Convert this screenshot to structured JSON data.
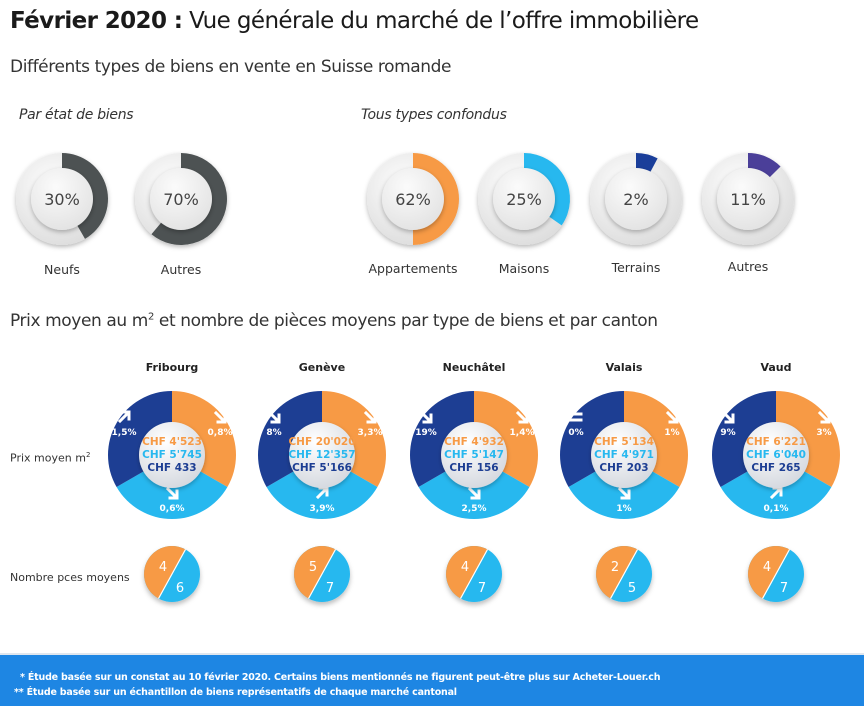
{
  "header": {
    "title_bold": "Février 2020 :",
    "title_rest": " Vue générale du marché de l’offre immobilière",
    "subtitle": "Différents types de biens en vente en Suisse romande"
  },
  "colors": {
    "orange": "#f79a45",
    "light_blue": "#27b8ef",
    "dark_blue": "#1d3e93",
    "dark_grey": "#4d5253",
    "purple": "#4b3f99",
    "terrain_blue": "#1a3e9a",
    "footer_blue": "#1e86e3"
  },
  "section1": {
    "by_state_label": "Par état de biens",
    "all_types_label": "Tous types confondus"
  },
  "section2": {
    "title_before": "Prix moyen au m",
    "title_sup": "2",
    "title_after": " et nombre de pièces moyens par type de biens et par canton",
    "row_price_label": "Prix moyen m",
    "row_price_sup": "2",
    "row_rooms_label": "Nombre pces moyens"
  },
  "chart_data": [
    {
      "type": "pie",
      "title": "Par état de biens",
      "series": [
        {
          "name": "Neufs",
          "value": 30,
          "label": "30%",
          "color": "#4d5253"
        },
        {
          "name": "Autres",
          "value": 70,
          "label": "70%",
          "color": "#4d5253"
        }
      ]
    },
    {
      "type": "pie",
      "title": "Tous types confondus",
      "series": [
        {
          "name": "Appartements",
          "value": 62,
          "label": "62%",
          "color": "#f79a45"
        },
        {
          "name": "Maisons",
          "value": 25,
          "label": "25%",
          "color": "#27b8ef"
        },
        {
          "name": "Terrains",
          "value": 2,
          "label": "2%",
          "color": "#1a3e9a"
        },
        {
          "name": "Autres",
          "value": 11,
          "label": "11%",
          "color": "#4b3f99"
        }
      ]
    },
    {
      "type": "table",
      "title": "Prix moyen au m2 et nombre de pièces moyens par type de biens et par canton",
      "categories": [
        "Fribourg",
        "Genève",
        "Neuchâtel",
        "Valais",
        "Vaud"
      ],
      "cantons": [
        {
          "name": "Fribourg",
          "prices": [
            {
              "type": "orange",
              "value": "CHF 4'523",
              "change": "0,8%",
              "trend": "down"
            },
            {
              "type": "light_blue",
              "value": "CHF 5'745",
              "change": "0,6%",
              "trend": "down"
            },
            {
              "type": "dark_blue",
              "value": "CHF 433",
              "change": "1,5%",
              "trend": "up"
            }
          ],
          "rooms": {
            "orange": "4",
            "light_blue": "6"
          }
        },
        {
          "name": "Genève",
          "prices": [
            {
              "type": "orange",
              "value": "CHF 20'020",
              "change": "3,3%",
              "trend": "down"
            },
            {
              "type": "light_blue",
              "value": "CHF 12'357",
              "change": "3,9%",
              "trend": "up"
            },
            {
              "type": "dark_blue",
              "value": "CHF 5'166",
              "change": "8%",
              "trend": "down"
            }
          ],
          "rooms": {
            "orange": "5",
            "light_blue": "7"
          }
        },
        {
          "name": "Neuchâtel",
          "prices": [
            {
              "type": "orange",
              "value": "CHF 4'932",
              "change": "1,4%",
              "trend": "down"
            },
            {
              "type": "light_blue",
              "value": "CHF 5'147",
              "change": "2,5%",
              "trend": "down"
            },
            {
              "type": "dark_blue",
              "value": "CHF 156",
              "change": "19%",
              "trend": "down"
            }
          ],
          "rooms": {
            "orange": "4",
            "light_blue": "7"
          }
        },
        {
          "name": "Valais",
          "prices": [
            {
              "type": "orange",
              "value": "CHF 5'134",
              "change": "1%",
              "trend": "down"
            },
            {
              "type": "light_blue",
              "value": "CHF 4'971",
              "change": "1%",
              "trend": "down"
            },
            {
              "type": "dark_blue",
              "value": "CHF 203",
              "change": "0%",
              "trend": "equal"
            }
          ],
          "rooms": {
            "orange": "2",
            "light_blue": "5"
          }
        },
        {
          "name": "Vaud",
          "prices": [
            {
              "type": "orange",
              "value": "CHF 6'221",
              "change": "3%",
              "trend": "down"
            },
            {
              "type": "light_blue",
              "value": "CHF 6'040",
              "change": "0,1%",
              "trend": "up"
            },
            {
              "type": "dark_blue",
              "value": "CHF 265",
              "change": "9%",
              "trend": "down"
            }
          ],
          "rooms": {
            "orange": "4",
            "light_blue": "7"
          }
        }
      ]
    }
  ],
  "footer": {
    "note1": "* Étude basée sur un constat au 10 février 2020. Certains biens mentionnés ne figurent peut-être plus sur Acheter-Louer.ch",
    "note2": "** Étude basée sur un échantillon de biens représentatifs de chaque marché cantonal"
  }
}
